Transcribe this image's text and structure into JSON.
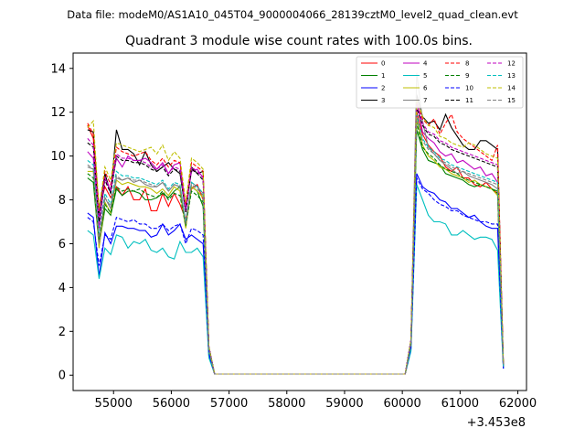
{
  "chart_data": {
    "type": "line",
    "suptitle": "Data file: modeM0/AS1A10_045T04_9000004066_28139cztM0_level2_quad_clean.evt",
    "title": "Quadrant 3 module wise count rates with 100.0s bins.",
    "xlabel": "",
    "ylabel": "",
    "x_offset_label": "+3.453e8",
    "xlim": [
      54300,
      62150
    ],
    "ylim": [
      -0.7,
      14.7
    ],
    "xticks": [
      55000,
      56000,
      57000,
      58000,
      59000,
      60000,
      61000,
      62000
    ],
    "yticks": [
      0,
      2,
      4,
      6,
      8,
      10,
      12,
      14
    ],
    "legend_location": "top-right",
    "x": [
      54550,
      54650,
      54750,
      54850,
      54950,
      55050,
      55150,
      55250,
      55350,
      55450,
      55550,
      55650,
      55750,
      55850,
      55950,
      56050,
      56150,
      56250,
      56350,
      56450,
      56550,
      56650,
      56750,
      56850,
      56950,
      57950,
      59950,
      60050,
      60150,
      60250,
      60350,
      60450,
      60550,
      60650,
      60750,
      60850,
      60950,
      61050,
      61150,
      61250,
      61350,
      61450,
      61550,
      61650,
      61750
    ],
    "series": [
      {
        "name": "0",
        "color": "#ff0000",
        "dash": "solid",
        "values": [
          11.4,
          10.8,
          7.6,
          8.6,
          8.1,
          8.6,
          8.2,
          8.6,
          8.0,
          8.0,
          8.5,
          7.5,
          7.5,
          8.3,
          7.7,
          8.3,
          7.8,
          7.1,
          8.5,
          8.7,
          8.0,
          1.2,
          0.05,
          0.05,
          0.05,
          0.05,
          0.05,
          0.05,
          1.5,
          12.0,
          11.0,
          10.5,
          10.2,
          10.0,
          9.5,
          9.3,
          9.5,
          9.0,
          9.0,
          8.7,
          8.6,
          8.8,
          8.5,
          8.3,
          0.4
        ]
      },
      {
        "name": "1",
        "color": "#008000",
        "dash": "solid",
        "values": [
          9.0,
          8.8,
          5.9,
          7.6,
          7.3,
          8.5,
          8.2,
          8.4,
          8.4,
          8.3,
          8.0,
          8.0,
          8.1,
          8.3,
          8.1,
          8.4,
          8.6,
          6.9,
          8.6,
          8.4,
          7.7,
          1.1,
          0.05,
          0.05,
          0.05,
          0.05,
          0.05,
          0.05,
          1.4,
          11.2,
          10.3,
          9.8,
          9.7,
          9.6,
          9.2,
          9.1,
          9.0,
          8.9,
          8.7,
          8.6,
          8.7,
          8.6,
          8.5,
          8.4,
          0.4
        ]
      },
      {
        "name": "2",
        "color": "#0000ff",
        "dash": "solid",
        "values": [
          7.4,
          7.2,
          4.5,
          6.5,
          6.0,
          6.8,
          6.8,
          6.7,
          6.7,
          6.6,
          6.6,
          6.3,
          6.4,
          6.9,
          6.4,
          6.6,
          6.9,
          6.2,
          6.4,
          6.2,
          6.0,
          0.9,
          0.05,
          0.05,
          0.05,
          0.05,
          0.05,
          0.05,
          1.2,
          9.2,
          8.6,
          8.4,
          8.3,
          8.0,
          7.9,
          7.6,
          7.6,
          7.4,
          7.2,
          7.3,
          7.0,
          6.8,
          6.7,
          6.7,
          0.3
        ]
      },
      {
        "name": "3",
        "color": "#000000",
        "dash": "solid",
        "values": [
          11.2,
          11.1,
          7.4,
          9.2,
          8.3,
          11.2,
          10.3,
          10.3,
          10.1,
          9.6,
          10.2,
          9.6,
          9.3,
          9.5,
          9.7,
          9.4,
          9.2,
          7.5,
          9.5,
          9.2,
          9.3,
          1.3,
          0.05,
          0.05,
          0.05,
          0.05,
          0.05,
          0.05,
          1.6,
          12.8,
          11.8,
          11.5,
          11.6,
          11.2,
          11.9,
          11.3,
          10.9,
          10.5,
          10.3,
          10.3,
          10.7,
          10.7,
          10.5,
          10.3,
          0.5
        ]
      },
      {
        "name": "4",
        "color": "#bf00bf",
        "dash": "solid",
        "values": [
          10.2,
          9.9,
          6.7,
          9.0,
          8.4,
          9.9,
          9.5,
          10.0,
          9.8,
          9.8,
          9.9,
          9.7,
          9.4,
          9.7,
          9.2,
          9.6,
          9.7,
          7.6,
          9.3,
          9.4,
          9.0,
          1.2,
          0.05,
          0.05,
          0.05,
          0.05,
          0.05,
          0.05,
          1.5,
          12.6,
          11.1,
          10.8,
          10.6,
          10.2,
          10.0,
          10.1,
          9.7,
          9.8,
          9.6,
          9.4,
          9.5,
          9.1,
          9.2,
          8.8,
          0.4
        ]
      },
      {
        "name": "5",
        "color": "#00bfbf",
        "dash": "solid",
        "values": [
          6.6,
          6.4,
          4.4,
          5.8,
          5.5,
          6.4,
          6.3,
          5.8,
          6.1,
          6.0,
          6.2,
          5.7,
          5.6,
          5.8,
          5.4,
          5.3,
          6.1,
          5.6,
          5.6,
          5.8,
          5.4,
          0.8,
          0.05,
          0.05,
          0.05,
          0.05,
          0.05,
          0.05,
          1.1,
          8.7,
          8.0,
          7.3,
          7.0,
          7.0,
          6.9,
          6.4,
          6.4,
          6.6,
          6.4,
          6.2,
          6.3,
          6.3,
          6.2,
          5.7,
          0.3
        ]
      },
      {
        "name": "6",
        "color": "#bfbf00",
        "dash": "solid",
        "values": [
          9.3,
          9.3,
          5.8,
          7.9,
          7.4,
          8.9,
          8.7,
          8.8,
          8.7,
          8.6,
          8.6,
          8.5,
          8.3,
          8.5,
          8.2,
          8.6,
          8.4,
          6.7,
          8.6,
          8.4,
          8.1,
          1.1,
          0.05,
          0.05,
          0.05,
          0.05,
          0.05,
          0.05,
          1.4,
          11.7,
          10.5,
          10.0,
          9.8,
          9.5,
          9.4,
          9.2,
          9.1,
          9.0,
          8.8,
          8.9,
          8.7,
          8.6,
          8.5,
          8.2,
          0.4
        ]
      },
      {
        "name": "7",
        "color": "#808080",
        "dash": "solid",
        "values": [
          9.5,
          9.4,
          6.0,
          8.1,
          7.6,
          9.0,
          8.9,
          9.0,
          8.8,
          8.9,
          8.7,
          8.6,
          8.6,
          8.8,
          8.4,
          8.7,
          8.6,
          6.9,
          8.8,
          8.6,
          8.3,
          1.2,
          0.05,
          0.05,
          0.05,
          0.05,
          0.05,
          0.05,
          1.5,
          13.8,
          11.6,
          10.4,
          10.1,
          9.8,
          9.6,
          9.4,
          9.2,
          9.3,
          9.1,
          9.0,
          8.9,
          8.8,
          8.7,
          8.5,
          0.4
        ]
      },
      {
        "name": "8",
        "color": "#ff0000",
        "dash": "dashed",
        "values": [
          11.5,
          11.0,
          7.5,
          9.3,
          8.7,
          10.4,
          10.2,
          10.1,
          10.0,
          10.1,
          10.2,
          9.8,
          9.6,
          9.9,
          9.5,
          9.8,
          9.7,
          7.8,
          9.7,
          9.5,
          9.3,
          1.3,
          0.05,
          0.05,
          0.05,
          0.05,
          0.05,
          0.05,
          1.6,
          12.4,
          11.7,
          11.4,
          11.7,
          11.0,
          11.5,
          11.9,
          11.1,
          10.8,
          10.6,
          10.4,
          10.2,
          10.0,
          9.8,
          10.5,
          0.5
        ]
      },
      {
        "name": "9",
        "color": "#008000",
        "dash": "dashed",
        "values": [
          9.2,
          9.0,
          6.2,
          7.8,
          7.4,
          8.6,
          8.4,
          8.5,
          8.4,
          8.5,
          8.3,
          8.2,
          8.1,
          8.4,
          8.0,
          8.3,
          8.2,
          6.8,
          8.4,
          8.2,
          7.9,
          1.1,
          0.05,
          0.05,
          0.05,
          0.05,
          0.05,
          0.05,
          1.4,
          11.5,
          10.4,
          10.1,
          9.9,
          9.6,
          9.4,
          9.3,
          9.2,
          9.0,
          8.9,
          8.8,
          8.7,
          8.6,
          8.5,
          8.3,
          0.4
        ]
      },
      {
        "name": "10",
        "color": "#0000ff",
        "dash": "dashed",
        "values": [
          7.2,
          7.0,
          5.0,
          6.4,
          6.2,
          7.2,
          7.1,
          7.0,
          7.1,
          6.9,
          6.9,
          6.7,
          6.7,
          6.9,
          6.6,
          6.8,
          6.9,
          6.0,
          6.7,
          6.6,
          6.4,
          1.0,
          0.05,
          0.05,
          0.05,
          0.05,
          0.05,
          0.05,
          1.3,
          9.0,
          8.5,
          8.3,
          8.0,
          7.8,
          7.7,
          7.5,
          7.5,
          7.3,
          7.2,
          7.1,
          7.0,
          7.0,
          6.9,
          6.9,
          0.3
        ]
      },
      {
        "name": "11",
        "color": "#000000",
        "dash": "dashed",
        "values": [
          10.6,
          10.4,
          7.0,
          8.9,
          8.3,
          10.0,
          9.8,
          9.8,
          9.7,
          9.7,
          9.6,
          9.4,
          9.3,
          9.5,
          9.1,
          9.4,
          9.3,
          7.4,
          9.4,
          9.2,
          8.9,
          1.3,
          0.05,
          0.05,
          0.05,
          0.05,
          0.05,
          0.05,
          1.6,
          12.2,
          11.4,
          11.0,
          10.9,
          10.6,
          10.5,
          10.3,
          10.2,
          10.1,
          10.0,
          9.9,
          9.8,
          9.7,
          9.6,
          9.5,
          0.5
        ]
      },
      {
        "name": "12",
        "color": "#bf00bf",
        "dash": "dashed",
        "values": [
          10.8,
          10.5,
          7.2,
          9.0,
          8.5,
          10.1,
          9.9,
          9.9,
          9.8,
          9.8,
          9.7,
          9.5,
          9.4,
          9.6,
          9.2,
          9.5,
          9.4,
          7.5,
          9.5,
          9.3,
          9.0,
          1.3,
          0.05,
          0.05,
          0.05,
          0.05,
          0.05,
          0.05,
          1.6,
          12.4,
          11.5,
          11.1,
          11.0,
          10.7,
          10.6,
          10.4,
          10.3,
          10.2,
          10.1,
          10.0,
          9.9,
          9.8,
          9.7,
          9.6,
          0.5
        ]
      },
      {
        "name": "13",
        "color": "#00bfbf",
        "dash": "dashed",
        "values": [
          9.8,
          9.6,
          6.4,
          8.3,
          7.8,
          9.3,
          9.1,
          9.1,
          9.0,
          9.0,
          8.9,
          8.8,
          8.7,
          8.9,
          8.5,
          8.8,
          8.7,
          7.0,
          8.8,
          8.6,
          8.3,
          1.2,
          0.05,
          0.05,
          0.05,
          0.05,
          0.05,
          0.05,
          1.5,
          11.9,
          10.8,
          10.4,
          10.2,
          9.9,
          9.8,
          9.6,
          9.5,
          9.4,
          9.3,
          9.2,
          9.1,
          9.0,
          8.9,
          8.8,
          0.4
        ]
      },
      {
        "name": "14",
        "color": "#bfbf00",
        "dash": "dashed",
        "values": [
          11.3,
          11.6,
          7.6,
          9.5,
          8.9,
          10.6,
          10.5,
          10.4,
          10.3,
          10.2,
          10.3,
          10.4,
          10.1,
          10.5,
          9.8,
          10.2,
          9.9,
          7.9,
          9.9,
          9.7,
          9.4,
          1.3,
          0.05,
          0.05,
          0.05,
          0.05,
          0.05,
          0.05,
          1.6,
          12.6,
          11.8,
          11.4,
          11.3,
          10.9,
          10.8,
          10.6,
          10.5,
          10.4,
          10.6,
          10.5,
          10.3,
          10.1,
          10.0,
          9.9,
          0.5
        ]
      },
      {
        "name": "15",
        "color": "#808080",
        "dash": "dashed",
        "values": [
          9.6,
          9.4,
          6.3,
          8.1,
          7.7,
          9.1,
          8.9,
          9.0,
          8.9,
          8.9,
          8.8,
          8.7,
          8.6,
          8.8,
          8.4,
          8.7,
          8.6,
          6.9,
          8.7,
          8.5,
          8.2,
          1.2,
          0.05,
          0.05,
          0.05,
          0.05,
          0.05,
          0.05,
          1.5,
          11.8,
          10.7,
          10.3,
          10.1,
          9.8,
          9.7,
          9.5,
          9.4,
          9.3,
          9.2,
          9.1,
          9.0,
          8.9,
          8.8,
          8.7,
          0.4
        ]
      }
    ]
  }
}
